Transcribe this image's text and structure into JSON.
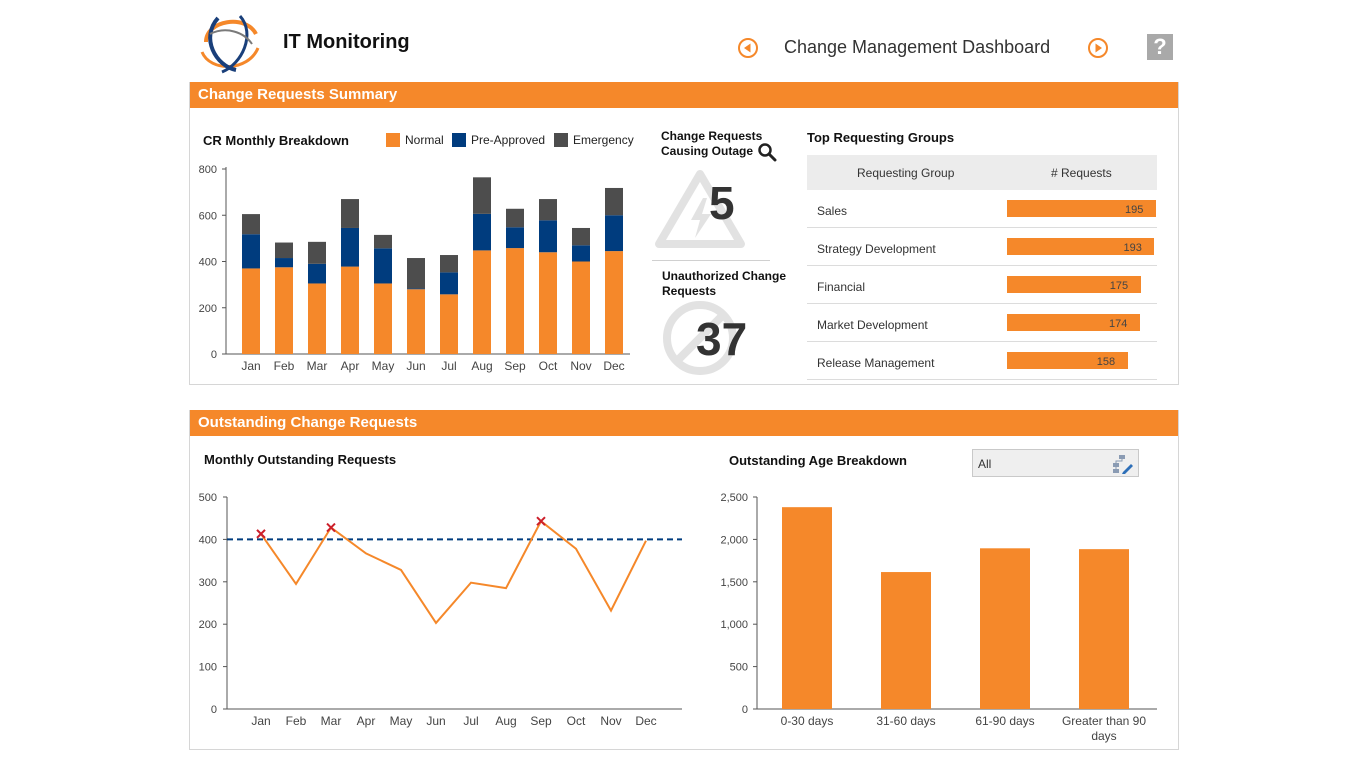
{
  "header": {
    "app_title": "IT Monitoring",
    "dashboard_title": "Change Management Dashboard",
    "help_label": "?"
  },
  "summary_panel": {
    "title": "Change Requests Summary",
    "cr_breakdown": {
      "title": "CR Monthly Breakdown",
      "legend": [
        {
          "name": "Normal",
          "color": "#f5882a"
        },
        {
          "name": "Pre-Approved",
          "color": "#003c7e"
        },
        {
          "name": "Emergency",
          "color": "#4d4d4d"
        }
      ]
    },
    "outage_kpi": {
      "title_line1": "Change Requests",
      "title_line2": "Causing Outage",
      "value": "5"
    },
    "unauthorized_kpi": {
      "title_line1": "Unauthorized Change",
      "title_line2": "Requests",
      "value": "37"
    },
    "top_groups": {
      "title": "Top Requesting Groups",
      "col_group": "Requesting Group",
      "col_requests": "# Requests",
      "rows": [
        {
          "group": "Sales",
          "requests": "195",
          "value": 195
        },
        {
          "group": "Strategy Development",
          "requests": "193",
          "value": 193
        },
        {
          "group": "Financial",
          "requests": "175",
          "value": 175
        },
        {
          "group": "Market Development",
          "requests": "174",
          "value": 174
        },
        {
          "group": "Release Management",
          "requests": "158",
          "value": 158
        }
      ]
    }
  },
  "outstanding_panel": {
    "title": "Outstanding Change Requests",
    "monthly_title": "Monthly Outstanding Requests",
    "age_title": "Outstanding Age Breakdown",
    "filter_value": "All"
  },
  "chart_data": [
    {
      "type": "bar",
      "stacked": true,
      "title": "CR Monthly Breakdown",
      "categories": [
        "Jan",
        "Feb",
        "Mar",
        "Apr",
        "May",
        "Jun",
        "Jul",
        "Aug",
        "Sep",
        "Oct",
        "Nov",
        "Dec"
      ],
      "series": [
        {
          "name": "Normal",
          "color": "#f5882a",
          "values": [
            370,
            375,
            305,
            378,
            305,
            280,
            258,
            448,
            458,
            440,
            400,
            445
          ]
        },
        {
          "name": "Pre-Approved",
          "color": "#003c7e",
          "values": [
            148,
            40,
            85,
            167,
            152,
            3,
            95,
            158,
            90,
            138,
            70,
            155
          ]
        },
        {
          "name": "Emergency",
          "color": "#4d4d4d",
          "values": [
            87,
            67,
            95,
            125,
            58,
            132,
            75,
            158,
            80,
            92,
            75,
            118
          ]
        }
      ],
      "ylim": [
        0,
        800
      ],
      "yticks": [
        "0",
        "200",
        "400",
        "600",
        "800"
      ],
      "grid": false
    },
    {
      "type": "line",
      "title": "Monthly Outstanding Requests",
      "categories": [
        "Jan",
        "Feb",
        "Mar",
        "Apr",
        "May",
        "Jun",
        "Jul",
        "Aug",
        "Sep",
        "Oct",
        "Nov",
        "Dec"
      ],
      "values": [
        413,
        295,
        428,
        367,
        328,
        203,
        298,
        285,
        443,
        378,
        232,
        397
      ],
      "threshold": 400,
      "flagged_months": [
        "Jan",
        "Mar",
        "Sep"
      ],
      "ylim": [
        0,
        500
      ],
      "yticks": [
        "0",
        "100",
        "200",
        "300",
        "400",
        "500"
      ],
      "color": "#f5882a",
      "threshold_color": "#003c7e",
      "marker_color": "#cc1f2a"
    },
    {
      "type": "bar",
      "title": "Outstanding Age Breakdown",
      "categories": [
        "0-30 days",
        "31-60 days",
        "61-90 days",
        "Greater than 90 days"
      ],
      "values": [
        2380,
        1615,
        1895,
        1885
      ],
      "ylim": [
        0,
        2500
      ],
      "yticks": [
        "0",
        "500",
        "1,000",
        "1,500",
        "2,000",
        "2,500"
      ],
      "color": "#f5882a"
    }
  ]
}
